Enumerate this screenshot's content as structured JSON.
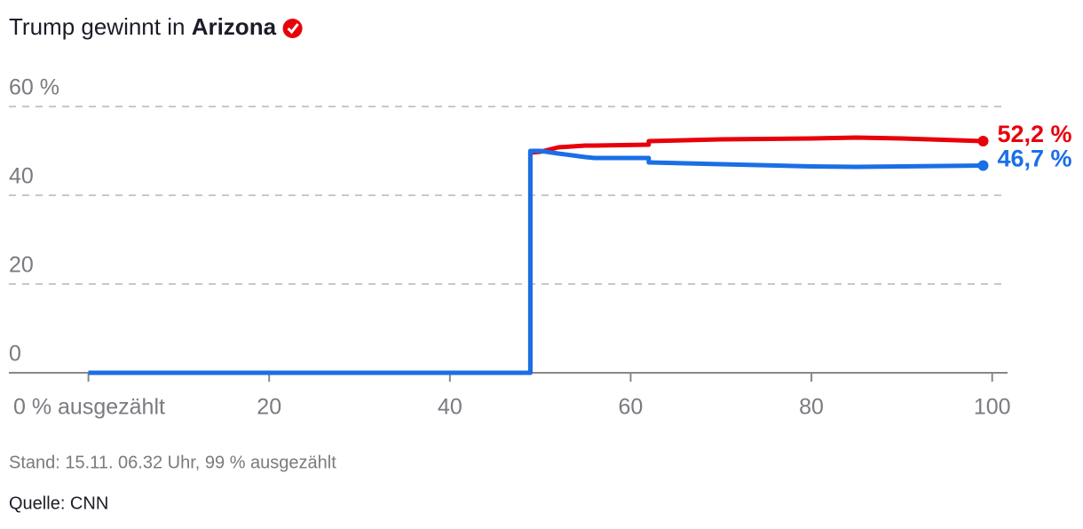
{
  "chart_data": {
    "type": "line",
    "title": "Trump gewinnt in",
    "title_bold": "Arizona",
    "x": [
      0,
      48.9,
      48.9,
      50,
      52,
      55,
      56,
      62,
      62,
      70,
      80,
      85,
      90,
      99
    ],
    "series": [
      {
        "color": "#e8000b",
        "values": [
          0,
          0,
          49.6,
          49.8,
          50.8,
          51.2,
          51.2,
          51.4,
          52.2,
          52.6,
          52.8,
          53,
          52.8,
          52.2
        ],
        "value_labels": [
          null,
          null,
          null,
          null,
          null,
          null,
          null,
          null,
          null,
          null,
          null,
          null,
          null,
          "52,2 %"
        ]
      },
      {
        "color": "#1a6fe6",
        "values": [
          0,
          0,
          50,
          50,
          49.4,
          48.6,
          48.4,
          48.4,
          47.4,
          47.0,
          46.5,
          46.4,
          46.5,
          46.7
        ],
        "value_labels": [
          null,
          null,
          null,
          null,
          null,
          null,
          null,
          null,
          null,
          null,
          null,
          null,
          null,
          "46,7 %"
        ]
      }
    ],
    "xlim": [
      -8.8,
      101.7
    ],
    "ylim": [
      0,
      60
    ],
    "xticks": [
      {
        "value": 0,
        "label": "0 % ausgezählt"
      },
      20,
      40,
      60,
      80,
      100
    ],
    "yticks": [
      0,
      20,
      40,
      {
        "value": 60,
        "label": "60 %"
      }
    ],
    "grid": true,
    "footnote": "Stand: 15.11. 06.32 Uhr, 99 % ausgezählt",
    "source": "Quelle: CNN"
  }
}
